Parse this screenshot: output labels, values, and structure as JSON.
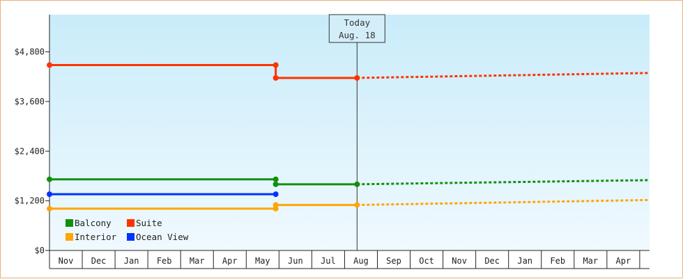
{
  "chart_data": {
    "type": "line",
    "today_label": "Today",
    "today_date": "Aug. 18",
    "x_labels": [
      "Nov",
      "Dec",
      "Jan",
      "Feb",
      "Mar",
      "Apr",
      "May",
      "Jun",
      "Jul",
      "Aug",
      "Sep",
      "Oct",
      "Nov",
      "Dec",
      "Jan",
      "Feb",
      "Mar",
      "Apr"
    ],
    "y_ticks": [
      "$0",
      "$1,200",
      "$2,400",
      "$3,600",
      "$4,800"
    ],
    "y_tick_values": [
      0,
      1200,
      2400,
      3600,
      4800
    ],
    "ylim": [
      0,
      5700
    ],
    "x_range": [
      0,
      18.3
    ],
    "today_x": 9.38,
    "grid": false,
    "legend_position": "bottom-left",
    "series": [
      {
        "name": "Balcony",
        "color": "#109010",
        "solid": [
          [
            0,
            1720
          ],
          [
            6.9,
            1720
          ],
          [
            6.9,
            1600
          ],
          [
            9.38,
            1600
          ]
        ],
        "dotted": [
          [
            9.38,
            1600
          ],
          [
            18.3,
            1700
          ]
        ],
        "markers": [
          [
            0,
            1720
          ],
          [
            6.9,
            1720
          ],
          [
            6.9,
            1600
          ],
          [
            9.38,
            1600
          ]
        ]
      },
      {
        "name": "Suite",
        "color": "#ff3300",
        "solid": [
          [
            0,
            4480
          ],
          [
            6.9,
            4480
          ],
          [
            6.9,
            4170
          ],
          [
            9.38,
            4170
          ]
        ],
        "dotted": [
          [
            9.38,
            4170
          ],
          [
            18.3,
            4290
          ]
        ],
        "markers": [
          [
            0,
            4480
          ],
          [
            6.9,
            4480
          ],
          [
            6.9,
            4170
          ],
          [
            9.38,
            4170
          ]
        ]
      },
      {
        "name": "Interior",
        "color": "#ffa500",
        "solid": [
          [
            0,
            1010
          ],
          [
            6.9,
            1010
          ],
          [
            6.9,
            1100
          ],
          [
            9.38,
            1100
          ]
        ],
        "dotted": [
          [
            9.38,
            1100
          ],
          [
            18.3,
            1220
          ]
        ],
        "markers": [
          [
            0,
            1010
          ],
          [
            6.9,
            1010
          ],
          [
            6.9,
            1100
          ],
          [
            9.38,
            1100
          ]
        ]
      },
      {
        "name": "Ocean View",
        "color": "#0033ff",
        "solid": [
          [
            0,
            1360
          ],
          [
            6.9,
            1360
          ]
        ],
        "dotted": [],
        "markers": [
          [
            0,
            1360
          ],
          [
            6.9,
            1360
          ]
        ]
      }
    ]
  }
}
